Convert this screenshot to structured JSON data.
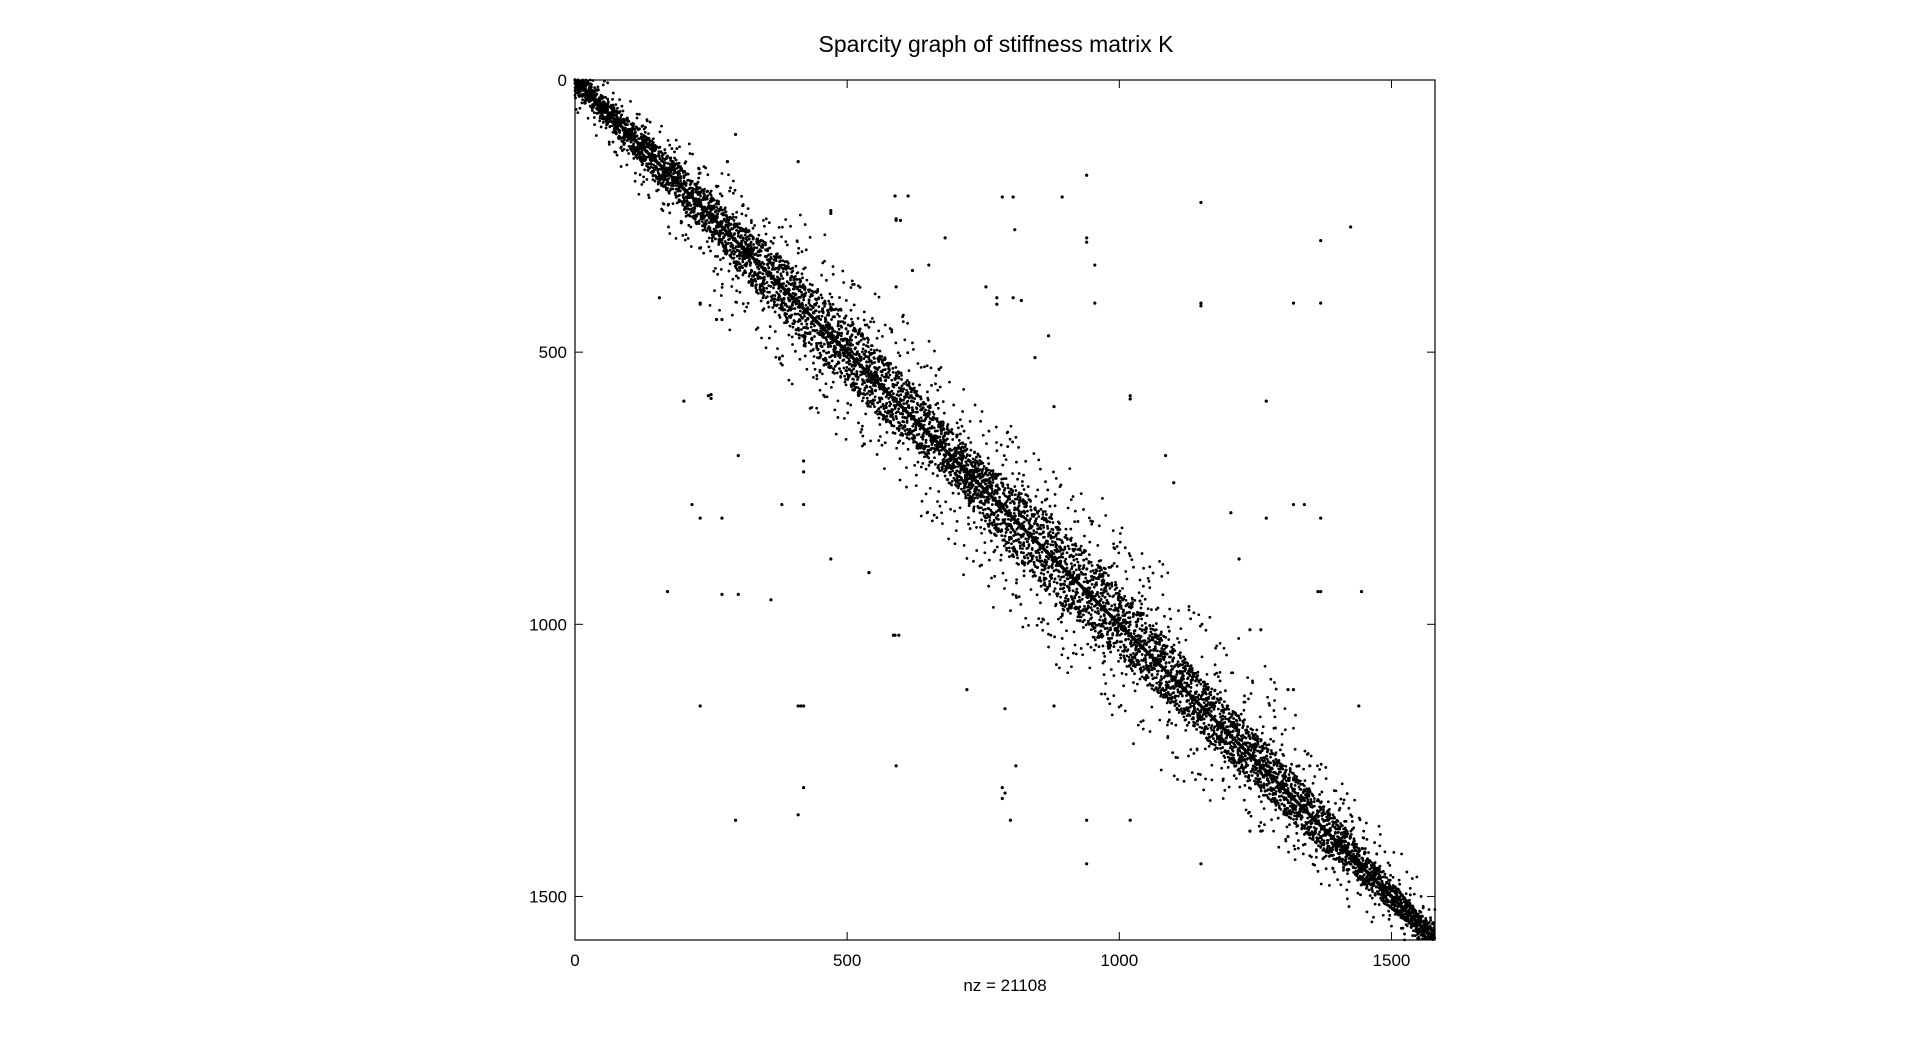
{
  "chart_data": {
    "type": "scatter",
    "title": "Sparcity graph of stiffness matrix K",
    "xlabel": "nz = 21108",
    "ylabel": "",
    "xlim": [
      0,
      1580
    ],
    "ylim": [
      0,
      1580
    ],
    "y_axis_reversed": true,
    "xticks": [
      0,
      500,
      1000,
      1500
    ],
    "yticks": [
      0,
      500,
      1000,
      1500
    ],
    "grid": false,
    "legend": "none",
    "nz": 21108,
    "marker_color": "#000000",
    "background": "#ffffff",
    "band": {
      "description": "dense non-zero band along the main diagonal, full matrix extent",
      "half_width_narrow": [
        [
          0,
          20
        ],
        [
          300,
          45
        ],
        [
          500,
          70
        ],
        [
          700,
          45
        ],
        [
          900,
          80
        ],
        [
          1100,
          55
        ],
        [
          1350,
          45
        ],
        [
          1580,
          15
        ]
      ],
      "half_width_scatter": [
        [
          0,
          50
        ],
        [
          200,
          90
        ],
        [
          450,
          180
        ],
        [
          600,
          140
        ],
        [
          850,
          180
        ],
        [
          1000,
          220
        ],
        [
          1200,
          150
        ],
        [
          1450,
          90
        ],
        [
          1580,
          30
        ]
      ]
    },
    "points": [
      [
        295,
        100
      ],
      [
        410,
        150
      ],
      [
        280,
        150
      ],
      [
        940,
        175
      ],
      [
        1150,
        225
      ],
      [
        785,
        215
      ],
      [
        805,
        215
      ],
      [
        895,
        215
      ],
      [
        588,
        213
      ],
      [
        612,
        213
      ],
      [
        470,
        240
      ],
      [
        470,
        245
      ],
      [
        590,
        255
      ],
      [
        590,
        258
      ],
      [
        598,
        258
      ],
      [
        680,
        290
      ],
      [
        808,
        275
      ],
      [
        940,
        290
      ],
      [
        940,
        298
      ],
      [
        1370,
        295
      ],
      [
        1425,
        270
      ],
      [
        155,
        400
      ],
      [
        230,
        410
      ],
      [
        230,
        412
      ],
      [
        260,
        440
      ],
      [
        270,
        440
      ],
      [
        340,
        385
      ],
      [
        590,
        380
      ],
      [
        620,
        350
      ],
      [
        650,
        340
      ],
      [
        755,
        380
      ],
      [
        775,
        400
      ],
      [
        775,
        412
      ],
      [
        805,
        400
      ],
      [
        820,
        405
      ],
      [
        1150,
        410
      ],
      [
        1150,
        415
      ],
      [
        1320,
        410
      ],
      [
        1370,
        410
      ],
      [
        955,
        410
      ],
      [
        955,
        340
      ],
      [
        200,
        590
      ],
      [
        245,
        580
      ],
      [
        250,
        578
      ],
      [
        250,
        585
      ],
      [
        870,
        470
      ],
      [
        1020,
        580
      ],
      [
        1020,
        586
      ],
      [
        880,
        600
      ],
      [
        845,
        510
      ],
      [
        1270,
        590
      ],
      [
        300,
        690
      ],
      [
        420,
        720
      ],
      [
        380,
        780
      ],
      [
        230,
        805
      ],
      [
        270,
        805
      ],
      [
        215,
        780
      ],
      [
        420,
        700
      ],
      [
        420,
        780
      ],
      [
        1085,
        690
      ],
      [
        1100,
        740
      ],
      [
        1270,
        805
      ],
      [
        1320,
        780
      ],
      [
        1340,
        780
      ],
      [
        1370,
        805
      ],
      [
        1205,
        795
      ],
      [
        170,
        940
      ],
      [
        270,
        945
      ],
      [
        300,
        945
      ],
      [
        360,
        955
      ],
      [
        470,
        880
      ],
      [
        540,
        905
      ],
      [
        1220,
        880
      ],
      [
        1365,
        940
      ],
      [
        1370,
        940
      ],
      [
        1445,
        940
      ],
      [
        1240,
        1010
      ],
      [
        1260,
        1010
      ],
      [
        585,
        1020
      ],
      [
        588,
        1020
      ],
      [
        595,
        1020
      ],
      [
        720,
        1120
      ],
      [
        1310,
        1120
      ],
      [
        1320,
        1120
      ],
      [
        230,
        1150
      ],
      [
        410,
        1150
      ],
      [
        415,
        1150
      ],
      [
        420,
        1150
      ],
      [
        790,
        1155
      ],
      [
        880,
        1150
      ],
      [
        1440,
        1150
      ],
      [
        590,
        1260
      ],
      [
        810,
        1260
      ],
      [
        1330,
        1260
      ],
      [
        1350,
        1260
      ],
      [
        785,
        1300
      ],
      [
        785,
        1320
      ],
      [
        790,
        1310
      ],
      [
        410,
        1350
      ],
      [
        420,
        1300
      ],
      [
        295,
        1360
      ],
      [
        800,
        1360
      ],
      [
        940,
        1360
      ],
      [
        1020,
        1360
      ],
      [
        940,
        1440
      ],
      [
        1150,
        1440
      ],
      [
        1240,
        1380
      ],
      [
        1260,
        1380
      ],
      [
        1310,
        1390
      ],
      [
        1370,
        1390
      ]
    ]
  }
}
